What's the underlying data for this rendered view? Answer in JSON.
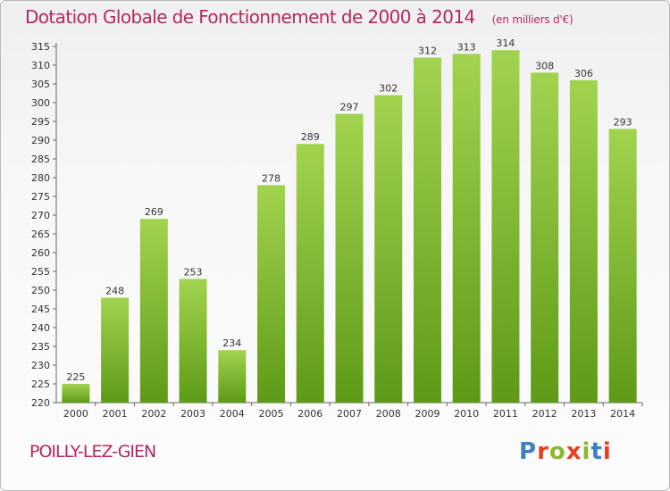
{
  "header": {
    "title": "Dotation Globale de Fonctionnement de 2000 à 2014",
    "unit": "(en milliers d'€)"
  },
  "footer": {
    "commune": "POILLY-LEZ-GIEN",
    "logo_text": "Proxiti"
  },
  "colors": {
    "title": "#b52763",
    "bar_light": "#a2d34f",
    "bar_dark": "#5e9a17",
    "logo_letters": [
      "#3d7fc4",
      "#e8411f",
      "#8ab929",
      "#e8411f",
      "#8ab929",
      "#3d7fc4",
      "#e8411f"
    ]
  },
  "chart_data": {
    "type": "bar",
    "categories": [
      "2000",
      "2001",
      "2002",
      "2003",
      "2004",
      "2005",
      "2006",
      "2007",
      "2008",
      "2009",
      "2010",
      "2011",
      "2012",
      "2013",
      "2014"
    ],
    "values": [
      225,
      248,
      269,
      253,
      234,
      278,
      289,
      297,
      302,
      312,
      313,
      314,
      308,
      306,
      293
    ],
    "title": "Dotation Globale de Fonctionnement de 2000 à 2014",
    "xlabel": "",
    "ylabel": "",
    "ylim": [
      220,
      315
    ],
    "ytick_step": 5,
    "grid": false,
    "legend": "none"
  }
}
